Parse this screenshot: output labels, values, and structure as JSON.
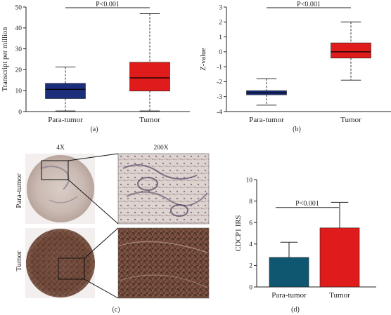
{
  "chart_data": [
    {
      "id": "a",
      "type": "box",
      "panel_label": "(a)",
      "ylabel": "Transcript per million",
      "ylim": [
        0,
        50
      ],
      "yticks": [
        0,
        10,
        20,
        30,
        40,
        50
      ],
      "categories": [
        "Para-tumor",
        "Tumor"
      ],
      "boxes": [
        {
          "min": 0.3,
          "q1": 6.2,
          "median": 10.6,
          "q3": 13.5,
          "max": 21.3,
          "color": "#1a2e7a"
        },
        {
          "min": 0.3,
          "q1": 9.8,
          "median": 16.1,
          "q3": 23.6,
          "max": 46.8,
          "color": "#e01b1b"
        }
      ],
      "annotation": "P<0.001"
    },
    {
      "id": "b",
      "type": "box",
      "panel_label": "(b)",
      "ylabel": "Z-value",
      "ylim": [
        -4,
        3
      ],
      "yticks": [
        -4,
        -3,
        -2,
        -1,
        0,
        1,
        2,
        3
      ],
      "categories": [
        "Para-tumor",
        "Tumor"
      ],
      "boxes": [
        {
          "min": -3.57,
          "q1": -2.88,
          "median": -2.75,
          "q3": -2.6,
          "max": -1.8,
          "color": "#1a2e7a"
        },
        {
          "min": -1.9,
          "q1": -0.42,
          "median": 0.0,
          "q3": 0.6,
          "max": 2.0,
          "color": "#e01b1b"
        }
      ],
      "annotation": "P<0.001"
    },
    {
      "id": "d",
      "type": "bar",
      "panel_label": "(d)",
      "ylabel": "CDCP1 IRS",
      "ylim": [
        0,
        10
      ],
      "yticks": [
        0,
        2,
        4,
        6,
        8,
        10
      ],
      "categories": [
        "Para-tumor",
        "Tumor"
      ],
      "values": [
        2.75,
        5.5
      ],
      "errors": [
        1.42,
        2.38
      ],
      "colors": [
        "#0f5670",
        "#e01b1b"
      ],
      "annotation": "P<0.001"
    }
  ],
  "panel_c": {
    "panel_label": "(c)",
    "col_labels": [
      "4X",
      "200X"
    ],
    "row_labels": [
      "Para-tumor",
      "Tumor"
    ]
  }
}
